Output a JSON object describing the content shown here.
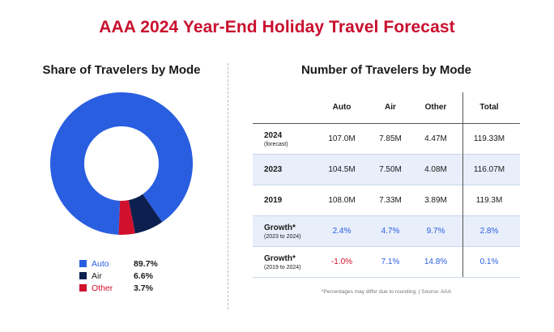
{
  "title": "AAA 2024 Year-End Holiday Travel Forecast",
  "colors": {
    "title": "#c8102e",
    "auto": "#2a5ee0",
    "air": "#0d1f4f",
    "other": "#d0102c",
    "pos": "#2a5ee0",
    "neg": "#d0102c"
  },
  "chart_data": [
    {
      "type": "pie",
      "title": "Share of Travelers by Mode",
      "donut": true,
      "legend_placement": "bottom",
      "categories": [
        "Auto",
        "Air",
        "Other"
      ],
      "values": [
        89.7,
        6.6,
        3.7
      ],
      "value_labels": [
        "89.7%",
        "6.6%",
        "3.7%"
      ],
      "colors": [
        "#2a5ee0",
        "#0d1f4f",
        "#d0102c"
      ]
    },
    {
      "type": "table",
      "title": "Number of Travelers by Mode",
      "columns": [
        "Auto",
        "Air",
        "Other",
        "Total"
      ],
      "rows": [
        {
          "label": "2024",
          "sublabel": "(forecast)",
          "values": [
            "107.0M",
            "7.85M",
            "4.47M",
            "119.33M"
          ],
          "shaded": false
        },
        {
          "label": "2023",
          "sublabel": "",
          "values": [
            "104.5M",
            "7.50M",
            "4.08M",
            "116.07M"
          ],
          "shaded": true
        },
        {
          "label": "2019",
          "sublabel": "",
          "values": [
            "108.0M",
            "7.33M",
            "3.89M",
            "119.3M"
          ],
          "shaded": false
        },
        {
          "label": "Growth*",
          "sublabel": "(2023 to 2024)",
          "values": [
            "2.4%",
            "4.7%",
            "9.7%",
            "2.8%"
          ],
          "shaded": true
        },
        {
          "label": "Growth*",
          "sublabel": "(2019 to 2024)",
          "values": [
            "-1.0%",
            "7.1%",
            "14.8%",
            "0.1%"
          ],
          "shaded": false
        }
      ]
    }
  ],
  "footnote": "*Percentages may differ due to rounding. | Source: AAA"
}
